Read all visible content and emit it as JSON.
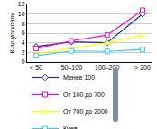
{
  "chart_data": {
    "type": "line",
    "y_label": "К-во упаковок",
    "categories": [
      "< 50",
      "50–100",
      "100–200",
      "> 200"
    ],
    "series": [
      {
        "name": "Менее 100",
        "color": "#1f2a80",
        "marker": "diamond",
        "values": [
          3.2,
          4.2,
          4.0,
          10.0
        ]
      },
      {
        "name": "От 100 до 700",
        "color": "#ff00cc",
        "marker": "square",
        "values": [
          2.8,
          4.4,
          5.6,
          10.8
        ]
      },
      {
        "name": "От 700 до 2000",
        "color": "#ffff00",
        "marker": "triangle-up",
        "values": [
          1.8,
          2.8,
          4.0,
          5.6
        ]
      },
      {
        "name": "Киев",
        "color": "#33ccee",
        "marker": "square",
        "values": [
          1.3,
          2.3,
          2.2,
          2.6
        ]
      }
    ],
    "ylim": [
      0,
      12
    ],
    "yticks": [
      0,
      2,
      4,
      6,
      8,
      10,
      12
    ],
    "grid": true,
    "legend": "bottom"
  }
}
